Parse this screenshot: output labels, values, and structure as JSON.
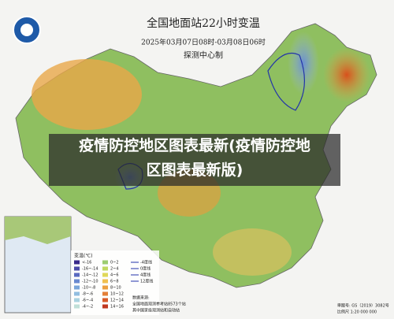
{
  "header": {
    "title": "全国地面站22小时变温",
    "time_range": "2025年03月07日08时-03月08日06时",
    "producer": "探测中心制"
  },
  "overlay": {
    "lines": [
      "疫情防控地区图表最新(疫情防控地",
      "区图表最新版)"
    ]
  },
  "legend": {
    "title": "变温(℃)",
    "items": [
      {
        "label": "<-16",
        "color": "#3a2a8a"
      },
      {
        "label": "-16~-14",
        "color": "#4a4aa8"
      },
      {
        "label": "-14~-12",
        "color": "#5a6ac0"
      },
      {
        "label": "-12~-10",
        "color": "#6a8ad0"
      },
      {
        "label": "-10~-8",
        "color": "#7aa6da"
      },
      {
        "label": "-8~-6",
        "color": "#92bee0"
      },
      {
        "label": "-6~-4",
        "color": "#aad2e0"
      },
      {
        "label": "-4~-2",
        "color": "#c0e0d8"
      },
      {
        "label": "0~2",
        "color": "#9ccc70"
      },
      {
        "label": "2~4",
        "color": "#c0d860"
      },
      {
        "label": "4~6",
        "color": "#e0d858"
      },
      {
        "label": "6~8",
        "color": "#f0c050"
      },
      {
        "label": "8~10",
        "color": "#eca040"
      },
      {
        "label": "10~12",
        "color": "#e48038"
      },
      {
        "label": "12~14",
        "color": "#d85a28"
      },
      {
        "label": "14~16",
        "color": "#c03820"
      }
    ],
    "lines": [
      "-4度线",
      "0度线",
      "4度线",
      "12度线"
    ]
  },
  "footer": {
    "source": [
      "数据来源:",
      "全国地面观测参考站8573个站",
      "其中国家级观测站和自动站"
    ],
    "approval": "审图号: GS（2019）3082号",
    "scale": "比例尺 1:20 000 000"
  }
}
